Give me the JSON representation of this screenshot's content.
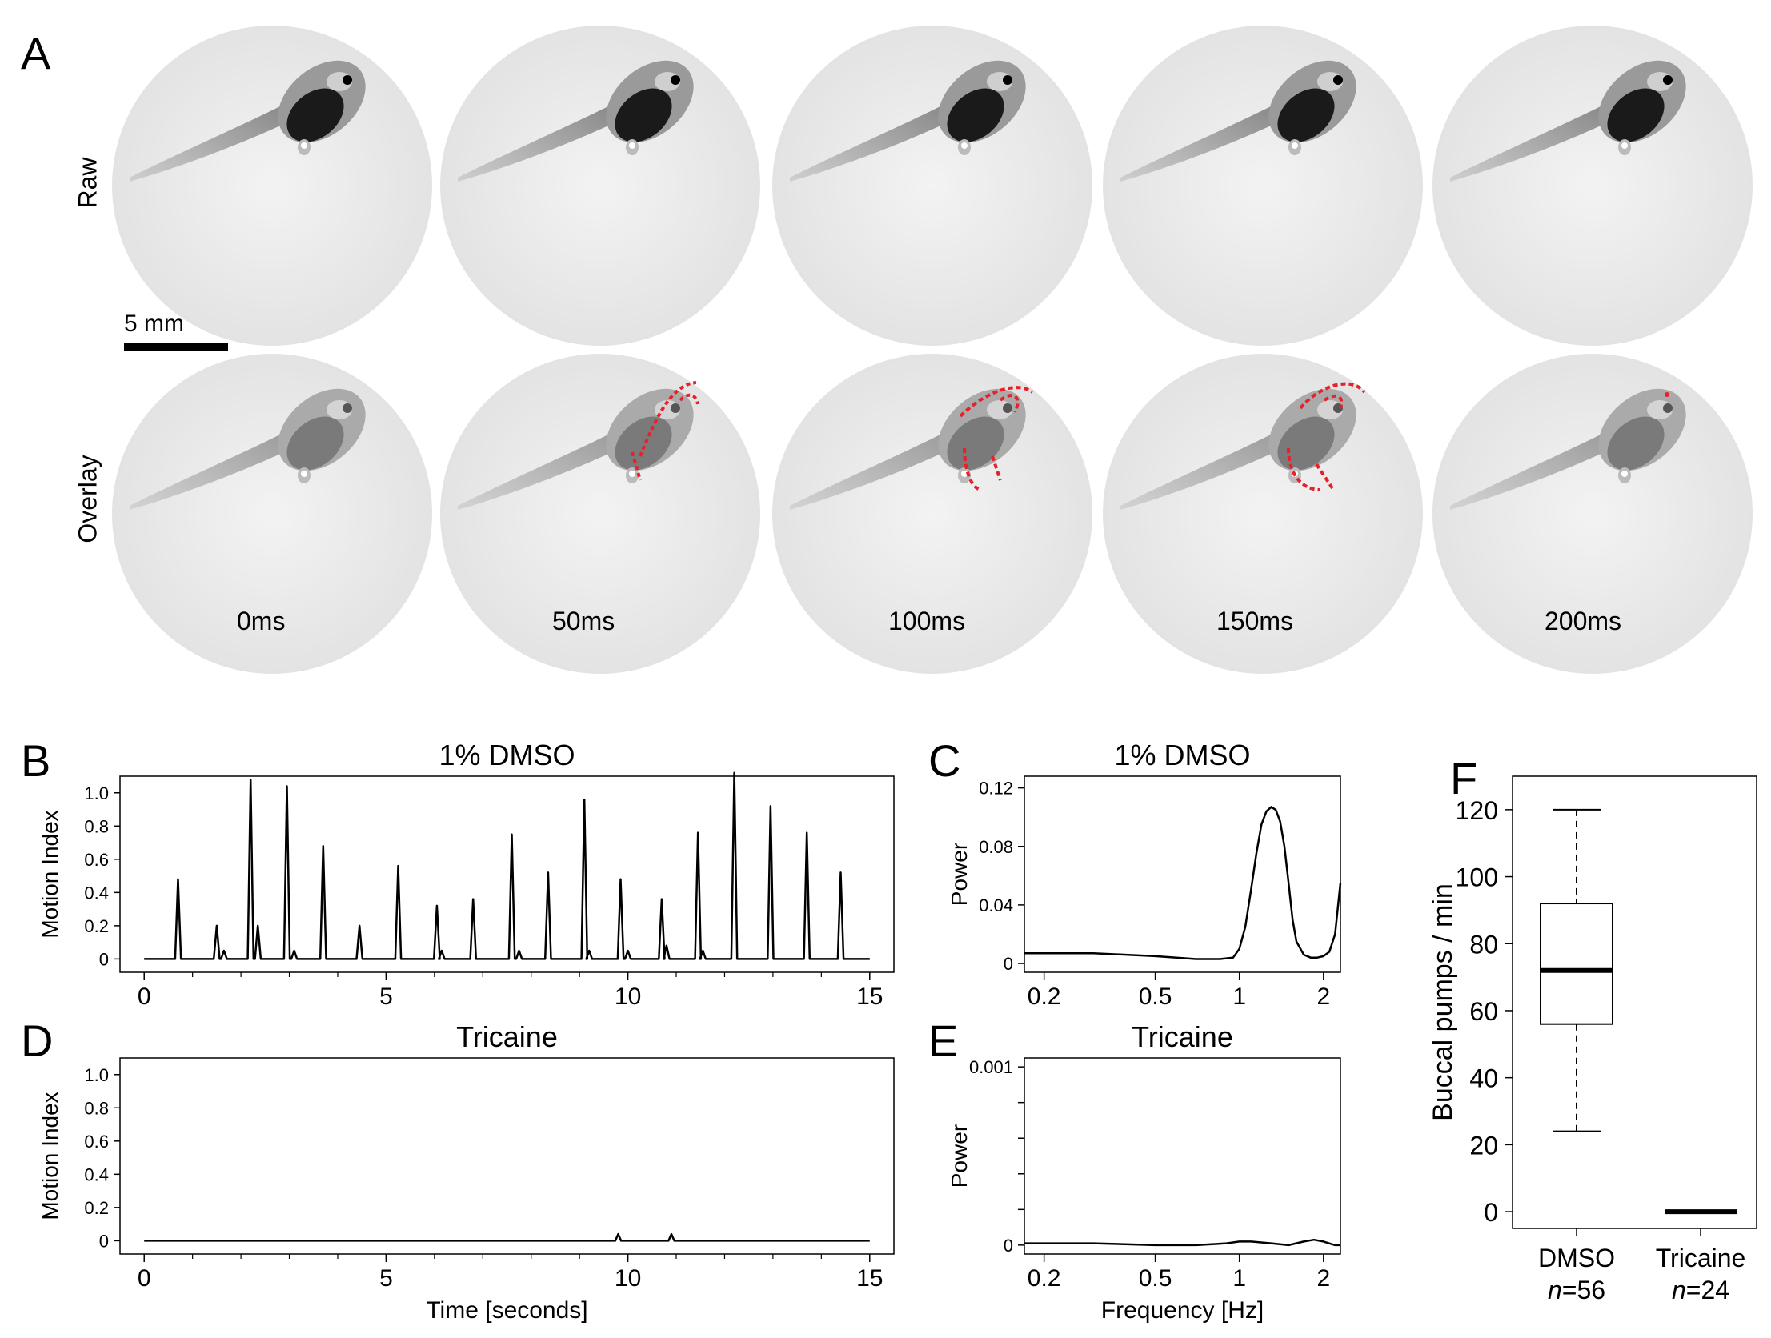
{
  "panels": {
    "A": "A",
    "B": "B",
    "C": "C",
    "D": "D",
    "E": "E",
    "F": "F"
  },
  "panel_a": {
    "row_labels": [
      "Raw",
      "Overlay"
    ],
    "scale_bar": "5 mm",
    "frame_times": [
      "0ms",
      "50ms",
      "100ms",
      "150ms",
      "200ms"
    ],
    "overlay_color": "#e8202a"
  },
  "chart_data": [
    {
      "id": "B",
      "type": "line",
      "title": "1% DMSO",
      "xlabel": "",
      "ylabel": "Motion Index",
      "xlim": [
        -0.5,
        15.5
      ],
      "ylim": [
        -0.08,
        1.1
      ],
      "xticks": [
        0,
        5,
        10,
        15
      ],
      "yticks": [
        0,
        0.2,
        0.4,
        0.6,
        0.8,
        1.0
      ],
      "ytick_labels": [
        "0",
        "0.2",
        "0.4",
        "0.6",
        "0.8",
        "1.0"
      ],
      "peaks": [
        {
          "x": 0.7,
          "y": 0.48
        },
        {
          "x": 1.5,
          "y": 0.2
        },
        {
          "x": 1.65,
          "y": 0.05
        },
        {
          "x": 2.2,
          "y": 1.08
        },
        {
          "x": 2.35,
          "y": 0.2
        },
        {
          "x": 2.95,
          "y": 1.04
        },
        {
          "x": 3.1,
          "y": 0.05
        },
        {
          "x": 3.7,
          "y": 0.68
        },
        {
          "x": 4.45,
          "y": 0.2
        },
        {
          "x": 5.25,
          "y": 0.56
        },
        {
          "x": 6.05,
          "y": 0.32
        },
        {
          "x": 6.15,
          "y": 0.05
        },
        {
          "x": 6.8,
          "y": 0.36
        },
        {
          "x": 7.6,
          "y": 0.75
        },
        {
          "x": 7.75,
          "y": 0.05
        },
        {
          "x": 8.35,
          "y": 0.52
        },
        {
          "x": 9.1,
          "y": 0.96
        },
        {
          "x": 9.2,
          "y": 0.05
        },
        {
          "x": 9.85,
          "y": 0.48
        },
        {
          "x": 10.0,
          "y": 0.05
        },
        {
          "x": 10.7,
          "y": 0.36
        },
        {
          "x": 10.8,
          "y": 0.08
        },
        {
          "x": 11.45,
          "y": 0.76
        },
        {
          "x": 11.55,
          "y": 0.05
        },
        {
          "x": 12.2,
          "y": 1.12
        },
        {
          "x": 12.95,
          "y": 0.92
        },
        {
          "x": 13.7,
          "y": 0.76
        },
        {
          "x": 14.4,
          "y": 0.52
        }
      ]
    },
    {
      "id": "C",
      "type": "line",
      "title": "1% DMSO",
      "xlabel": "",
      "ylabel": "Power",
      "xscale": "log",
      "xlim": [
        0.17,
        2.3
      ],
      "ylim": [
        -0.006,
        0.128
      ],
      "xticks": [
        0.2,
        0.5,
        1,
        2
      ],
      "xtick_labels": [
        "0.2",
        "0.5",
        "1",
        "2"
      ],
      "yticks": [
        0,
        0.04,
        0.08,
        0.12
      ],
      "ytick_labels": [
        "0",
        "0.04",
        "0.08",
        "0.12"
      ],
      "x": [
        0.17,
        0.3,
        0.5,
        0.7,
        0.85,
        0.95,
        1.0,
        1.05,
        1.1,
        1.15,
        1.2,
        1.25,
        1.3,
        1.35,
        1.4,
        1.45,
        1.5,
        1.55,
        1.6,
        1.7,
        1.8,
        1.9,
        2.0,
        2.1,
        2.2,
        2.3
      ],
      "y": [
        0.007,
        0.007,
        0.005,
        0.003,
        0.003,
        0.004,
        0.01,
        0.025,
        0.05,
        0.075,
        0.095,
        0.104,
        0.107,
        0.105,
        0.097,
        0.08,
        0.055,
        0.03,
        0.015,
        0.006,
        0.004,
        0.004,
        0.005,
        0.008,
        0.02,
        0.055
      ]
    },
    {
      "id": "D",
      "type": "line",
      "title": "Tricaine",
      "xlabel": "Time [seconds]",
      "ylabel": "Motion Index",
      "xlim": [
        -0.5,
        15.5
      ],
      "ylim": [
        -0.08,
        1.1
      ],
      "xticks": [
        0,
        5,
        10,
        15
      ],
      "yticks": [
        0,
        0.2,
        0.4,
        0.6,
        0.8,
        1.0
      ],
      "ytick_labels": [
        "0",
        "0.2",
        "0.4",
        "0.6",
        "0.8",
        "1.0"
      ],
      "peaks": [
        {
          "x": 9.8,
          "y": 0.04
        },
        {
          "x": 10.9,
          "y": 0.04
        }
      ]
    },
    {
      "id": "E",
      "type": "line",
      "title": "Tricaine",
      "xlabel": "Frequency [Hz]",
      "ylabel": "Power",
      "xscale": "log",
      "xlim": [
        0.17,
        2.3
      ],
      "ylim": [
        -5e-05,
        0.00105
      ],
      "xticks": [
        0.2,
        0.5,
        1,
        2
      ],
      "xtick_labels": [
        "0.2",
        "0.5",
        "1",
        "2"
      ],
      "yticks": [
        0,
        0.0002,
        0.0004,
        0.0006,
        0.0008,
        0.001
      ],
      "ytick_labels": [
        "0",
        "",
        "",
        "",
        "",
        "0.001"
      ],
      "x": [
        0.17,
        0.3,
        0.5,
        0.7,
        0.9,
        1.0,
        1.1,
        1.3,
        1.5,
        1.7,
        1.85,
        2.0,
        2.2,
        2.3
      ],
      "y": [
        1e-05,
        1e-05,
        0.0,
        0.0,
        1e-05,
        2e-05,
        2e-05,
        1e-05,
        0.0,
        2e-05,
        3e-05,
        2e-05,
        0.0,
        0.0
      ]
    },
    {
      "id": "F",
      "type": "box",
      "xlabel": "",
      "ylabel": "Buccal pumps / min",
      "ylim": [
        -5,
        130
      ],
      "yticks": [
        0,
        20,
        40,
        60,
        80,
        100,
        120
      ],
      "categories": [
        "DMSO",
        "Tricaine"
      ],
      "n_labels": [
        "n=56",
        "n=24"
      ],
      "boxes": [
        {
          "min": 24,
          "q1": 56,
          "median": 72,
          "q3": 92,
          "max": 120
        },
        {
          "min": 0,
          "q1": 0,
          "median": 0,
          "q3": 0,
          "max": 0
        }
      ]
    }
  ]
}
